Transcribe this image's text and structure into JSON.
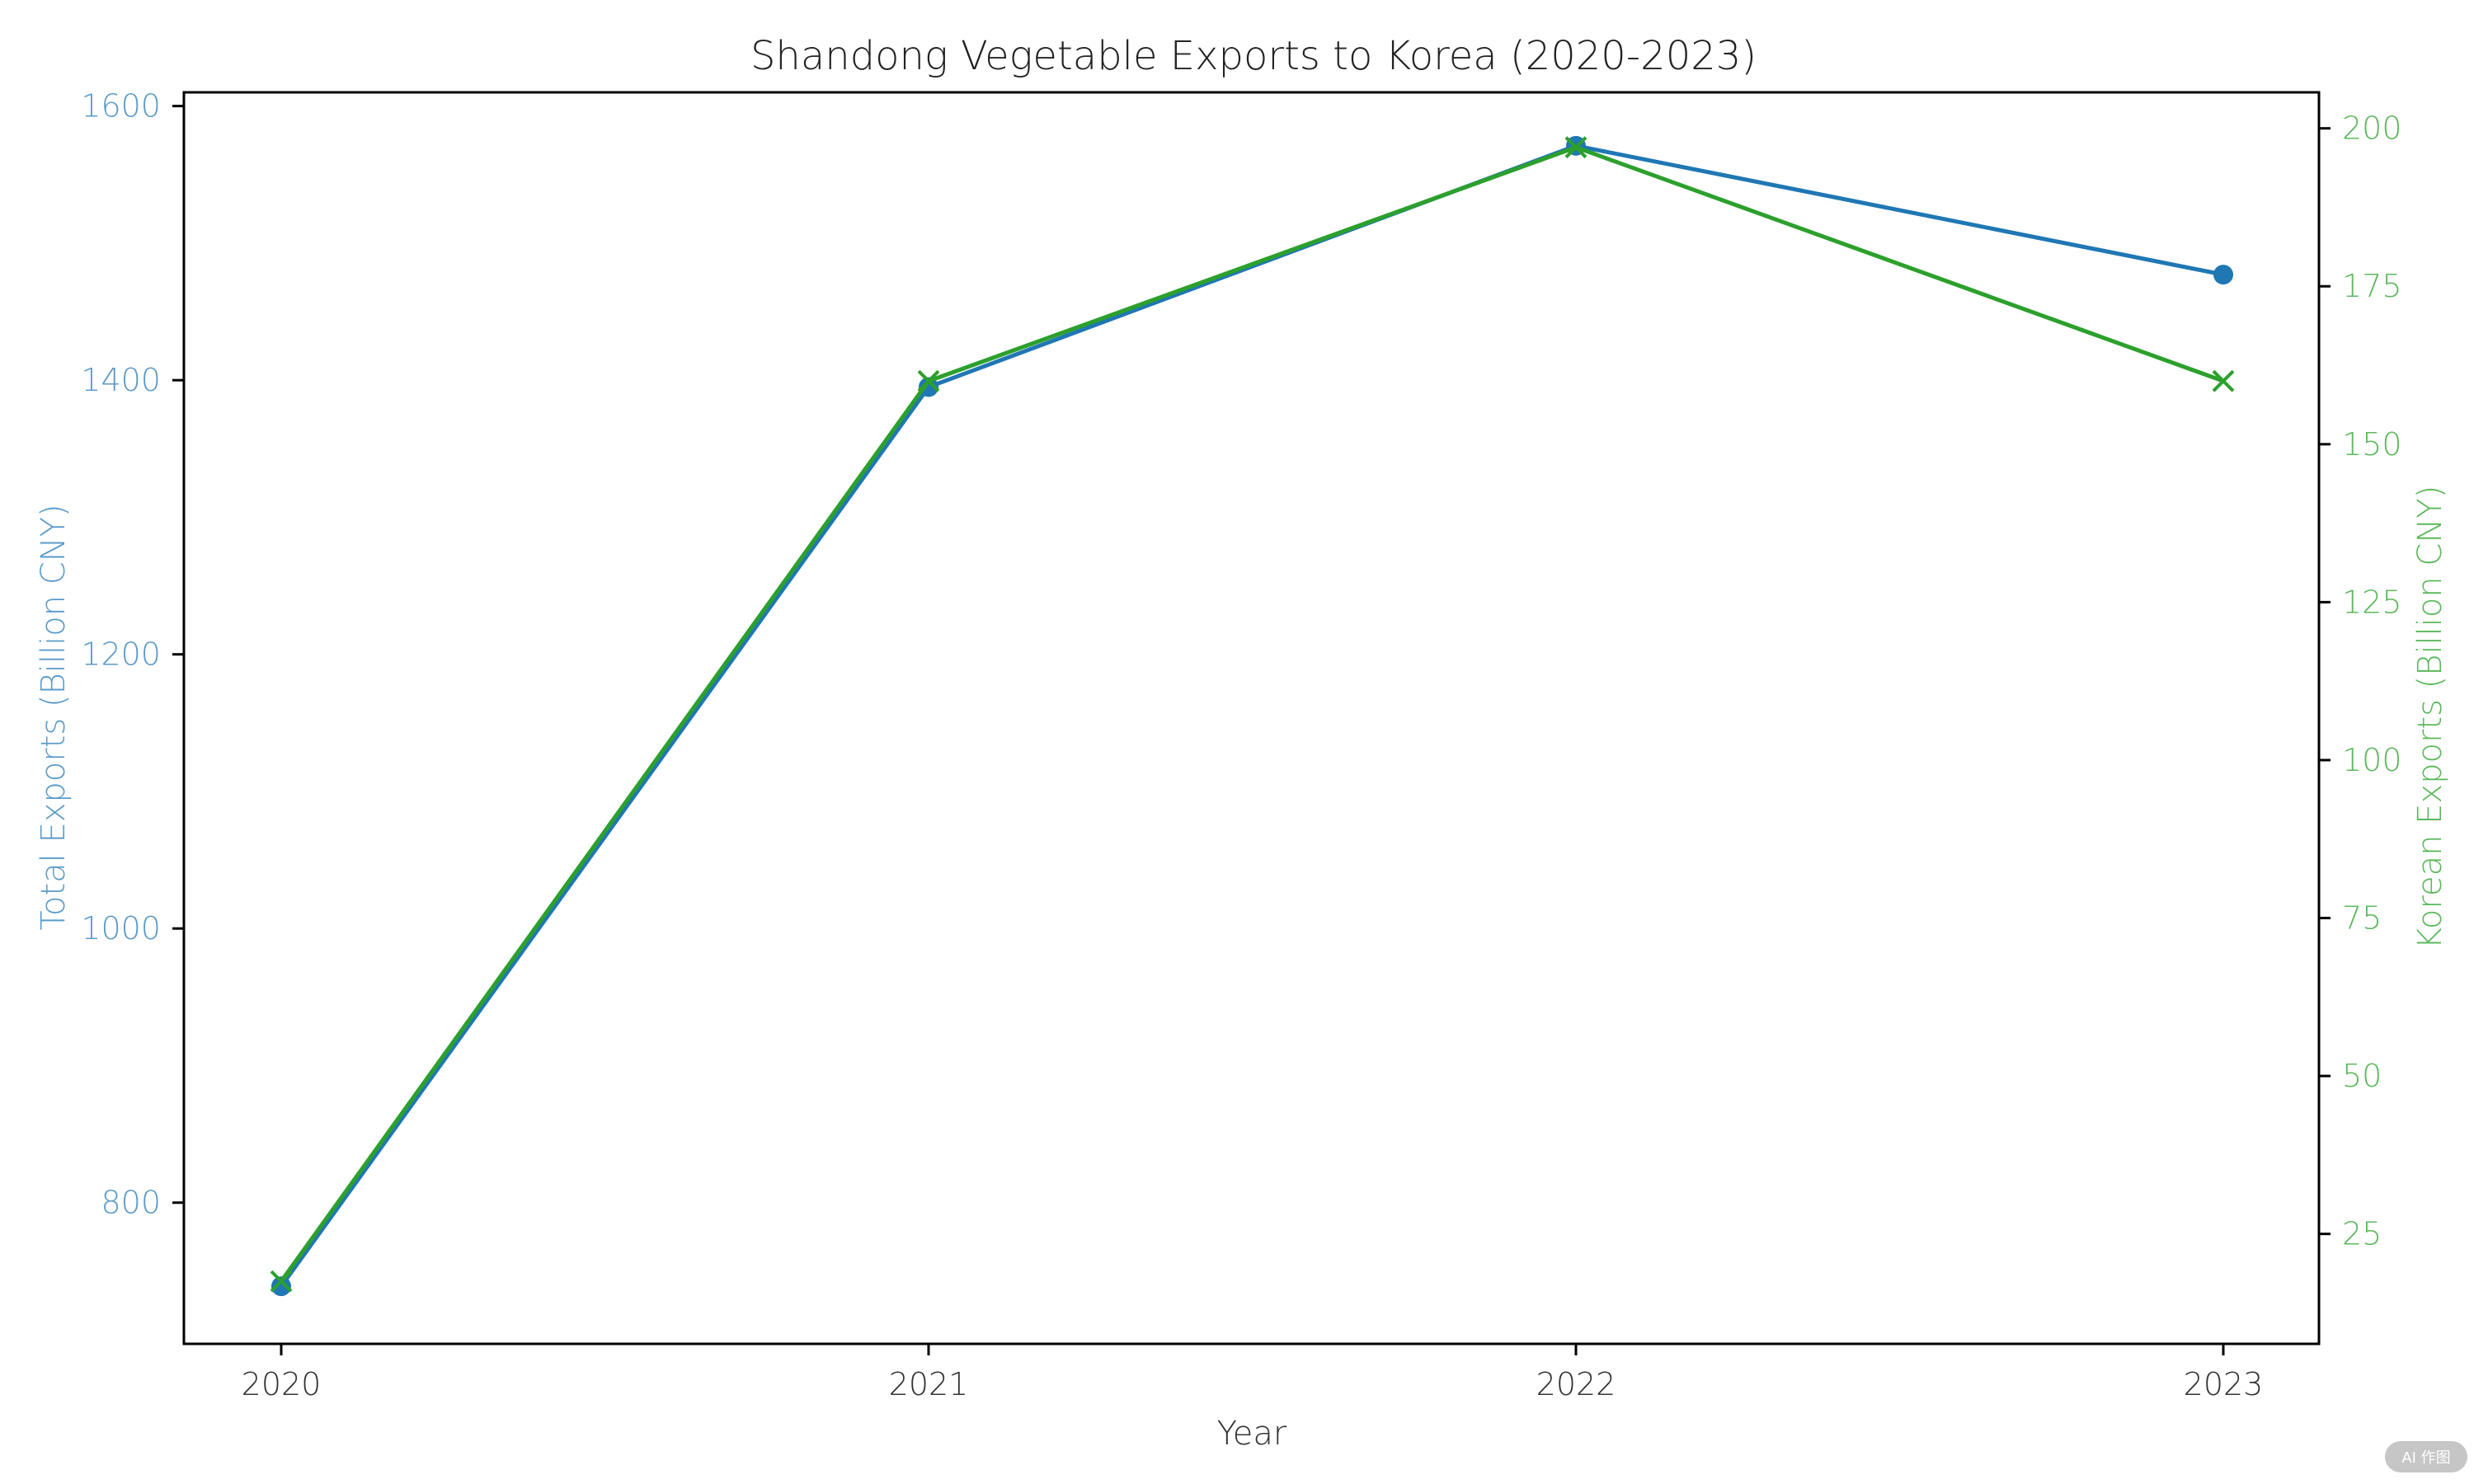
{
  "chart_data": {
    "type": "line",
    "title": "Shandong Vegetable Exports to Korea (2020-2023)",
    "xlabel": "Year",
    "ylabel_left": "Total Exports (Billion CNY)",
    "ylabel_right": "Korean Exports (Billion CNY)",
    "x": [
      "2020",
      "2021",
      "2022",
      "2023"
    ],
    "ylim_left": [
      697,
      1610
    ],
    "yticks_left": [
      800,
      1000,
      1200,
      1400,
      1600
    ],
    "ylim_right": [
      7.6,
      205.7
    ],
    "yticks_right": [
      25,
      50,
      75,
      100,
      125,
      150,
      175,
      200
    ],
    "grid": false,
    "legend": "none",
    "series": [
      {
        "axis": "left",
        "marker": "circle",
        "color": "#1f77b4",
        "values": [
          739,
          1395,
          1571,
          1477
        ]
      },
      {
        "axis": "right",
        "marker": "x",
        "color": "#2ca02c",
        "values": [
          17.5,
          160,
          197,
          160
        ]
      }
    ],
    "colors": {
      "left_axis": "#5b9bc8",
      "right_axis": "#5cb85c",
      "frame": "#000000"
    }
  },
  "watermark": "AI 作图"
}
